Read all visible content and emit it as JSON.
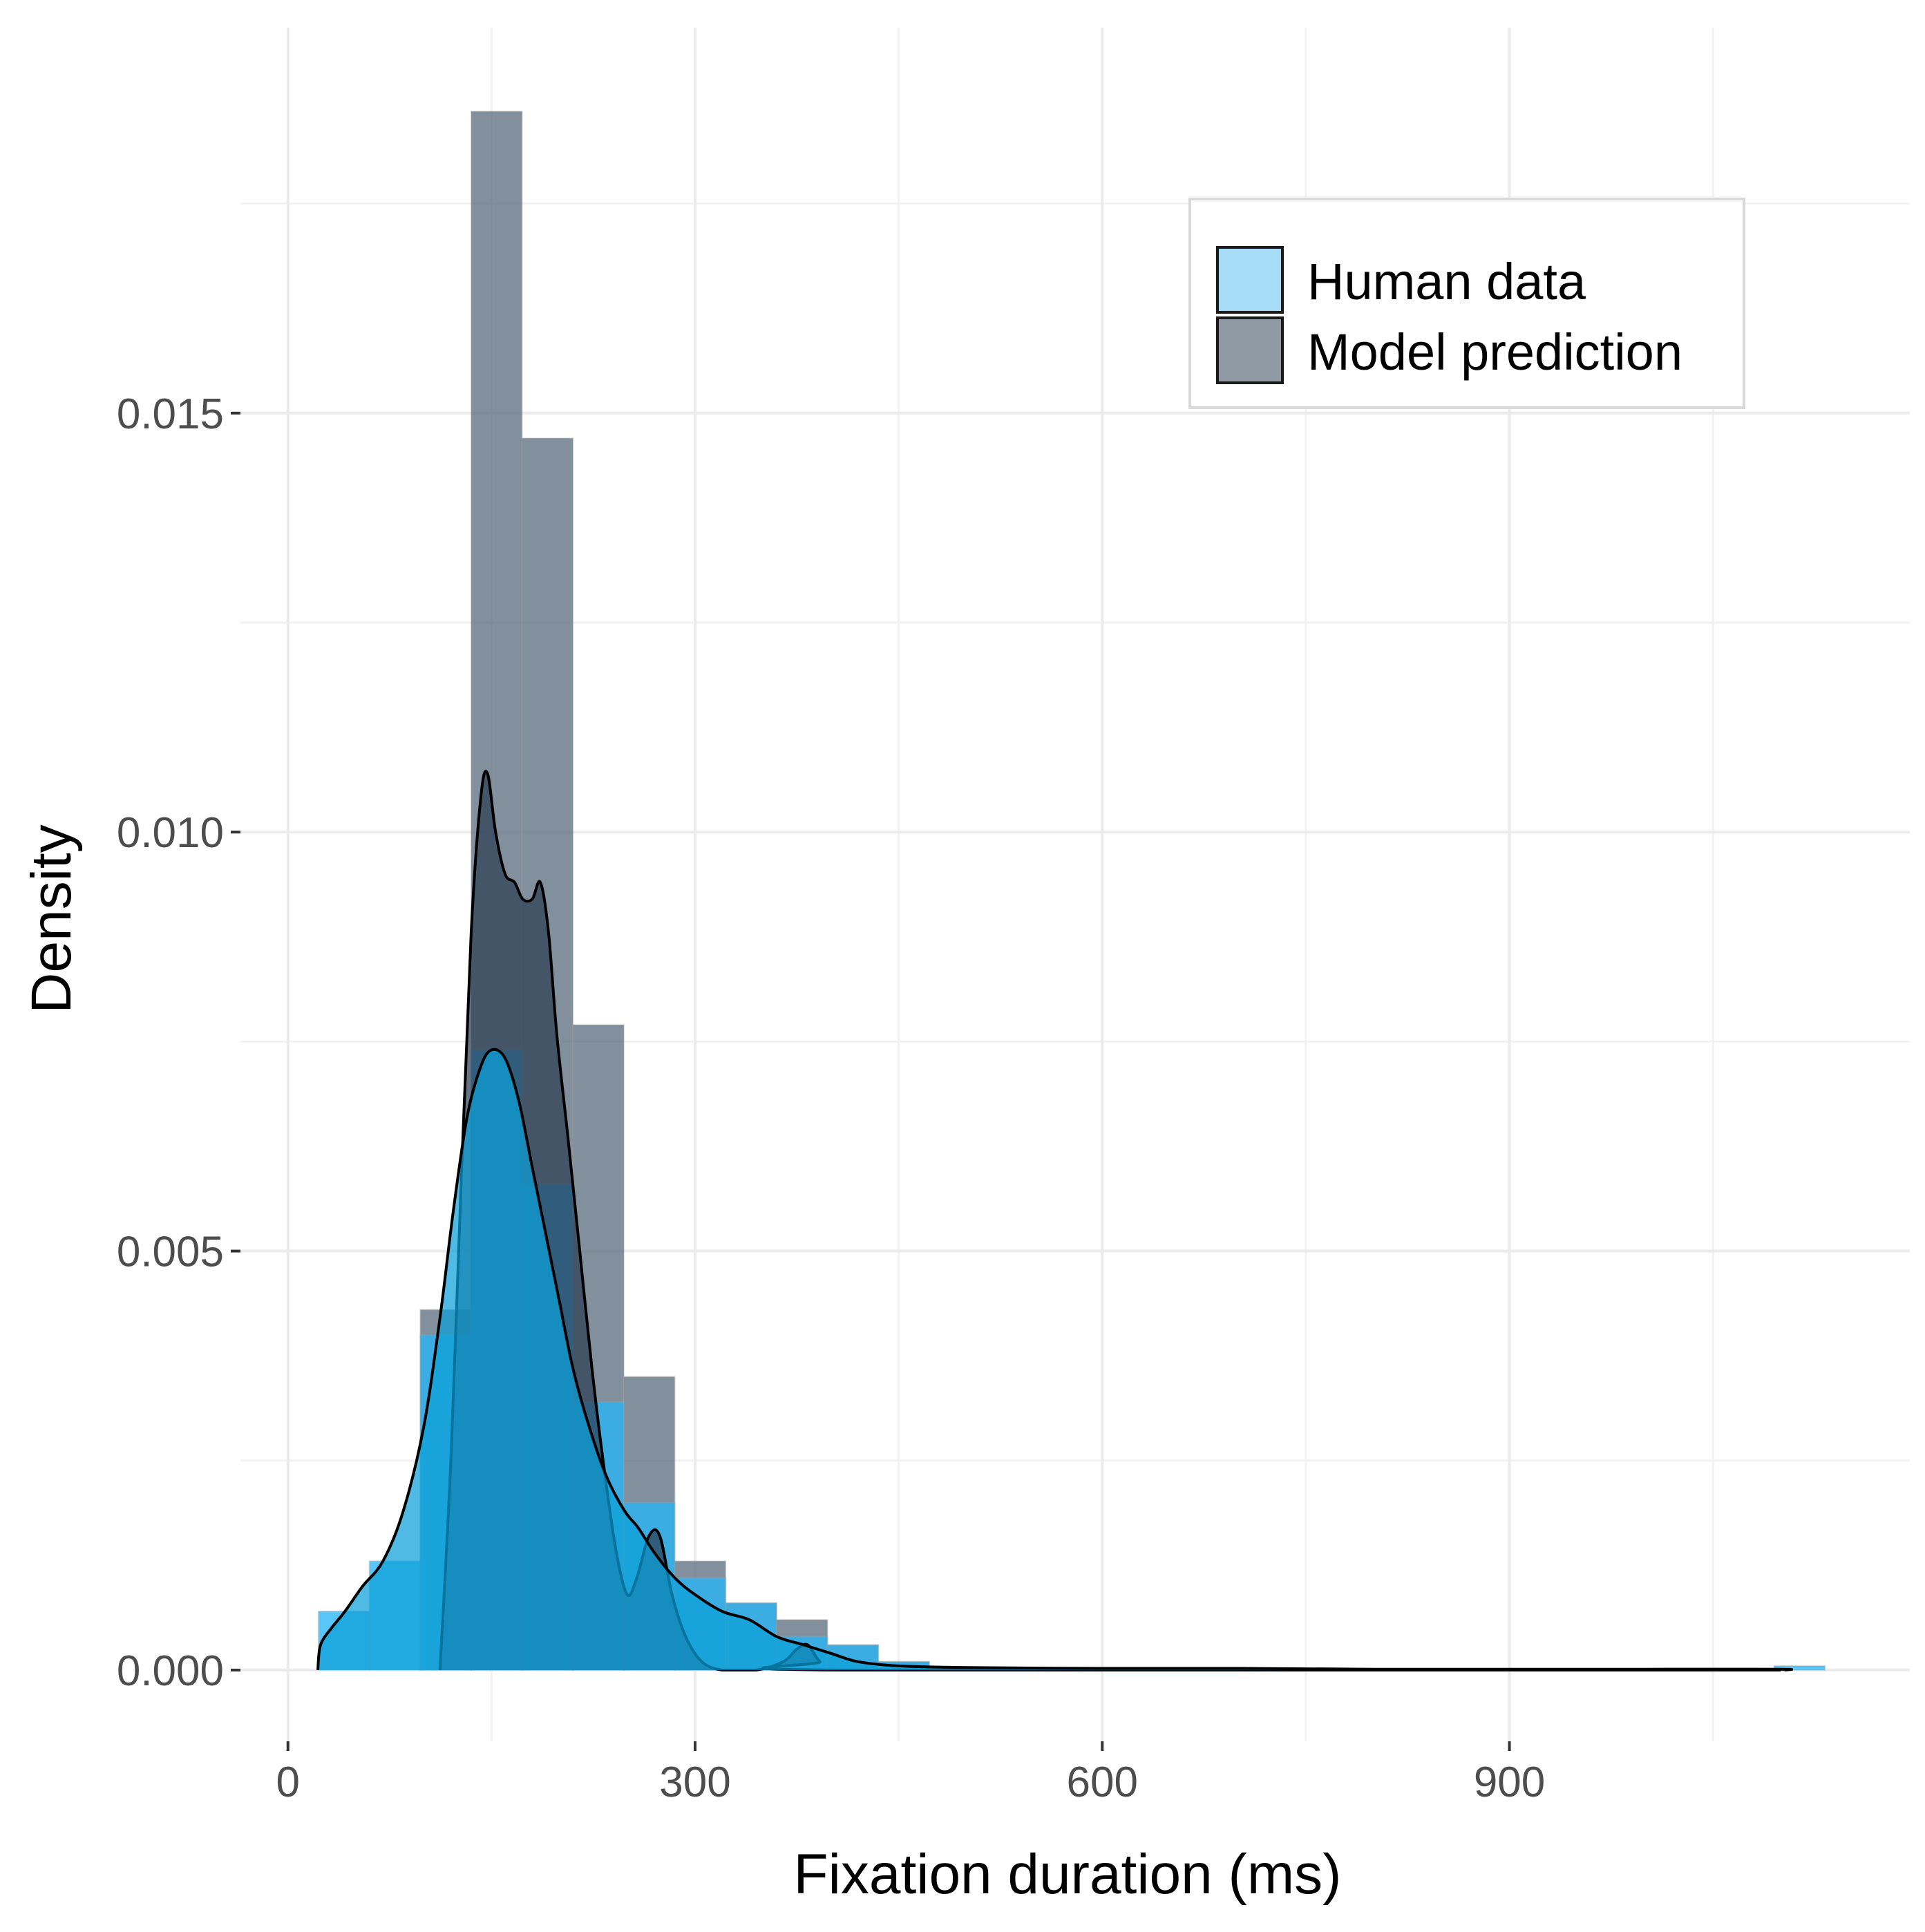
{
  "chart_data": {
    "type": "histogram",
    "xlabel": "Fixation duration (ms)",
    "ylabel": "Density",
    "xlim": [
      -35,
      1195
    ],
    "ylim": [
      -0.00085,
      0.0196
    ],
    "x_ticks": [
      0,
      300,
      600,
      900
    ],
    "x_tick_labels": [
      "0",
      "300",
      "600",
      "900"
    ],
    "x_minor_gridlines": [
      150,
      450,
      750,
      1050
    ],
    "y_ticks": [
      0.0,
      0.005,
      0.01,
      0.015
    ],
    "y_tick_labels": [
      "0.000",
      "0.005",
      "0.010",
      "0.015"
    ],
    "y_minor_gridlines": [
      0.0025,
      0.0075,
      0.0125,
      0.0175
    ],
    "grid": true,
    "legend_position": "top-right",
    "bin_width": 37.5,
    "series": [
      {
        "name": "Model prediction",
        "color": "#5f6f80",
        "bins": [
          {
            "x0": 97.5,
            "x1": 135,
            "density": 0.0043
          },
          {
            "x0": 135,
            "x1": 172.5,
            "density": 0.0186
          },
          {
            "x0": 172.5,
            "x1": 210,
            "density": 0.0147
          },
          {
            "x0": 210,
            "x1": 247.5,
            "density": 0.0077
          },
          {
            "x0": 247.5,
            "x1": 285,
            "density": 0.0035
          },
          {
            "x0": 285,
            "x1": 322.5,
            "density": 0.0013
          },
          {
            "x0": 322.5,
            "x1": 360,
            "density": 0.0008
          },
          {
            "x0": 360,
            "x1": 397.5,
            "density": 0.0006
          },
          {
            "x0": 397.5,
            "x1": 435,
            "density": 0.0003
          },
          {
            "x0": 435,
            "x1": 472.5,
            "density": 0.0001
          }
        ],
        "density_curve": [
          [
            112,
            0.0
          ],
          [
            120,
            0.0025
          ],
          [
            128,
            0.006
          ],
          [
            135,
            0.0088
          ],
          [
            142,
            0.0104
          ],
          [
            147,
            0.0107
          ],
          [
            153,
            0.01
          ],
          [
            160,
            0.0095
          ],
          [
            167,
            0.0094
          ],
          [
            173,
            0.0092
          ],
          [
            180,
            0.0092
          ],
          [
            186,
            0.0094
          ],
          [
            192,
            0.0088
          ],
          [
            198,
            0.0076
          ],
          [
            206,
            0.0064
          ],
          [
            215,
            0.005
          ],
          [
            224,
            0.0036
          ],
          [
            233,
            0.0024
          ],
          [
            242,
            0.0014
          ],
          [
            250,
            0.0009
          ],
          [
            257,
            0.0011
          ],
          [
            266,
            0.0016
          ],
          [
            274,
            0.0016
          ],
          [
            283,
            0.0009
          ],
          [
            293,
            0.0004
          ],
          [
            305,
            0.0001
          ],
          [
            320,
            0.0
          ],
          [
            345,
            0.0
          ],
          [
            365,
            0.0001
          ],
          [
            375,
            0.00025
          ],
          [
            383,
            0.0003
          ],
          [
            392,
            0.0001
          ],
          [
            405,
            0.0
          ],
          [
            1100,
            0.0
          ]
        ]
      },
      {
        "name": "Human data",
        "color": "#29b6f6",
        "bins": [
          {
            "x0": 22.5,
            "x1": 60,
            "density": 0.0007
          },
          {
            "x0": 60,
            "x1": 97.5,
            "density": 0.0013
          },
          {
            "x0": 97.5,
            "x1": 135,
            "density": 0.004
          },
          {
            "x0": 135,
            "x1": 172.5,
            "density": 0.0074
          },
          {
            "x0": 172.5,
            "x1": 210,
            "density": 0.0058
          },
          {
            "x0": 210,
            "x1": 247.5,
            "density": 0.0032
          },
          {
            "x0": 247.5,
            "x1": 285,
            "density": 0.002
          },
          {
            "x0": 285,
            "x1": 322.5,
            "density": 0.0011
          },
          {
            "x0": 322.5,
            "x1": 360,
            "density": 0.0008
          },
          {
            "x0": 360,
            "x1": 397.5,
            "density": 0.0004
          },
          {
            "x0": 397.5,
            "x1": 435,
            "density": 0.0003
          },
          {
            "x0": 435,
            "x1": 472.5,
            "density": 0.0001
          },
          {
            "x0": 1095,
            "x1": 1132.5,
            "density": 5e-05
          }
        ],
        "density_curve": [
          [
            22,
            0.0
          ],
          [
            24,
            0.0003
          ],
          [
            32,
            0.0005
          ],
          [
            42,
            0.0007
          ],
          [
            55,
            0.001
          ],
          [
            70,
            0.0013
          ],
          [
            85,
            0.0019
          ],
          [
            100,
            0.0029
          ],
          [
            112,
            0.0042
          ],
          [
            122,
            0.0055
          ],
          [
            132,
            0.0066
          ],
          [
            142,
            0.0072
          ],
          [
            150,
            0.0074
          ],
          [
            160,
            0.0073
          ],
          [
            170,
            0.0068
          ],
          [
            180,
            0.006
          ],
          [
            190,
            0.0052
          ],
          [
            200,
            0.0044
          ],
          [
            210,
            0.0036
          ],
          [
            222,
            0.0029
          ],
          [
            235,
            0.0023
          ],
          [
            248,
            0.0019
          ],
          [
            258,
            0.0017
          ],
          [
            270,
            0.0014
          ],
          [
            285,
            0.0011
          ],
          [
            300,
            0.0009
          ],
          [
            320,
            0.0007
          ],
          [
            340,
            0.0006
          ],
          [
            360,
            0.0004
          ],
          [
            380,
            0.0003
          ],
          [
            400,
            0.0002
          ],
          [
            420,
            0.0001
          ],
          [
            450,
            5e-05
          ],
          [
            500,
            3e-05
          ],
          [
            600,
            2e-05
          ],
          [
            700,
            2e-05
          ],
          [
            800,
            1e-05
          ],
          [
            900,
            1e-05
          ],
          [
            1000,
            1e-05
          ],
          [
            1100,
            1e-05
          ],
          [
            1102,
            0.0
          ]
        ]
      }
    ]
  }
}
